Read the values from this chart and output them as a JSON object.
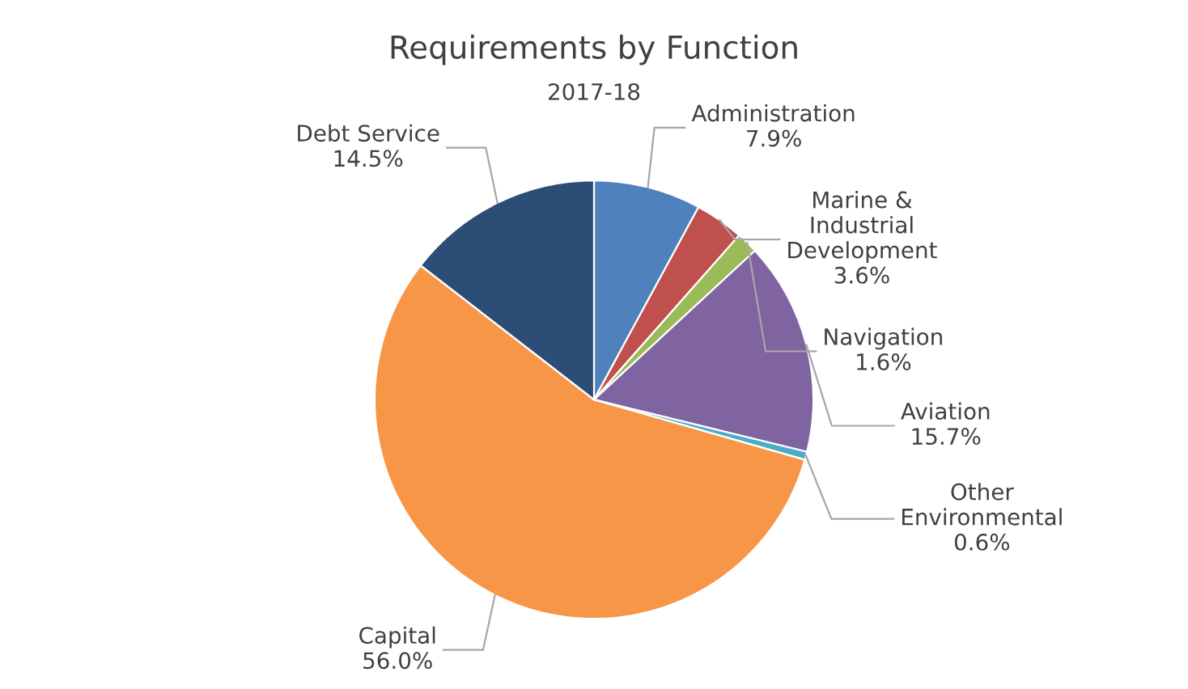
{
  "chart_data": {
    "type": "pie",
    "title": "Requirements by Function",
    "subtitle": "2017-18",
    "categories": [
      "Administration",
      "Marine &\nIndustrial\nDevelopment",
      "Navigation",
      "Aviation",
      "Other\nEnvironmental",
      "Capital",
      "Debt Service"
    ],
    "values": [
      7.9,
      3.6,
      1.6,
      15.7,
      0.6,
      56.0,
      14.5
    ],
    "value_labels": [
      "7.9%",
      "3.6%",
      "1.6%",
      "15.7%",
      "0.6%",
      "56.0%",
      "14.5%"
    ],
    "colors": [
      "#4f81bd",
      "#c0504d",
      "#9bbb59",
      "#8064a2",
      "#4bacc6",
      "#f79646",
      "#2c4d75"
    ],
    "legend": false
  }
}
